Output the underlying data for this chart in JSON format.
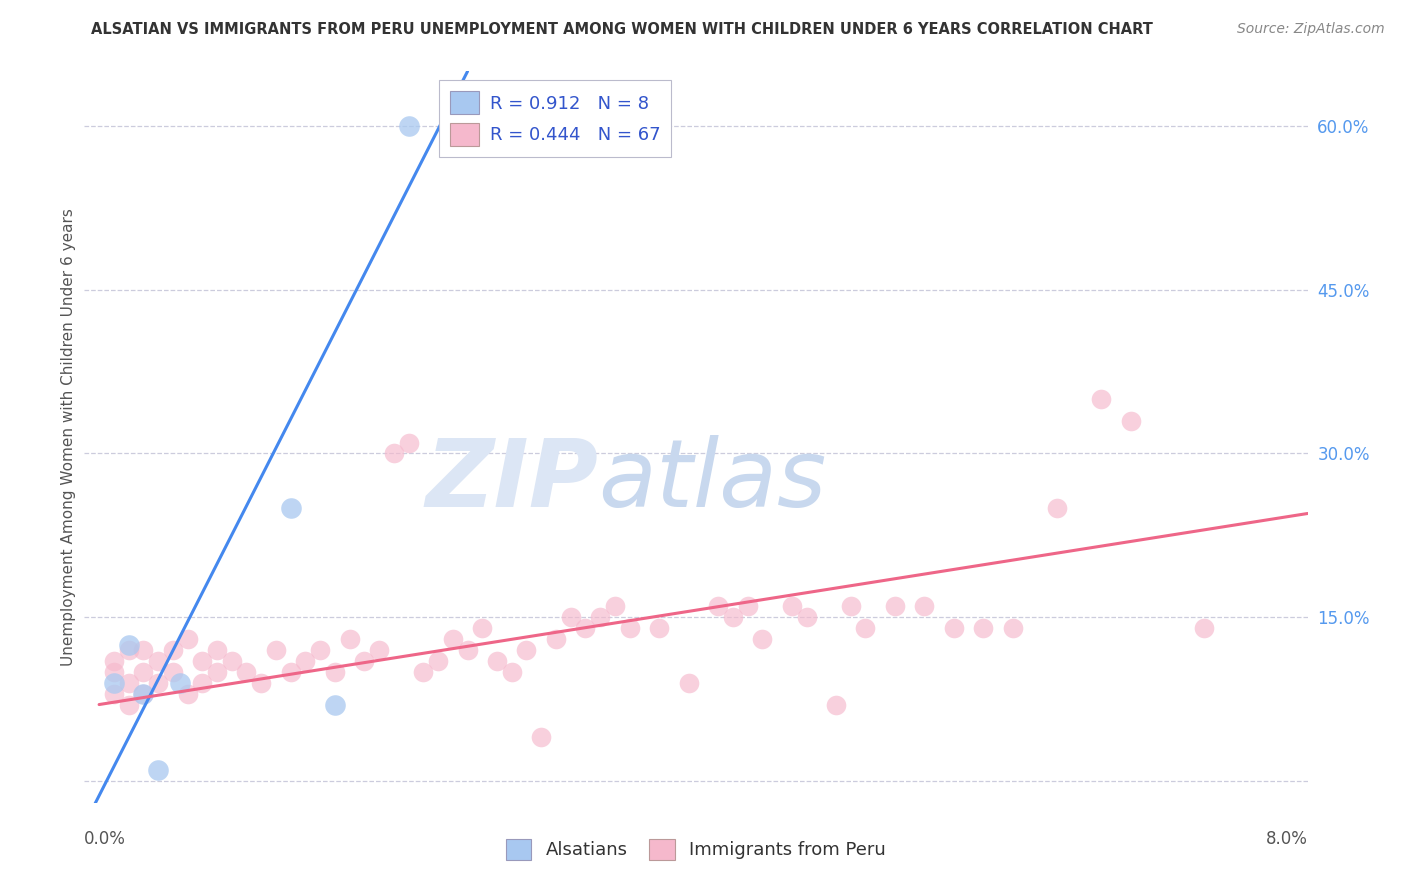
{
  "title": "ALSATIAN VS IMMIGRANTS FROM PERU UNEMPLOYMENT AMONG WOMEN WITH CHILDREN UNDER 6 YEARS CORRELATION CHART",
  "source": "Source: ZipAtlas.com",
  "ylabel": "Unemployment Among Women with Children Under 6 years",
  "legend_blue_label": "Alsatians",
  "legend_pink_label": "Immigrants from Peru",
  "r_blue": 0.912,
  "n_blue": 8,
  "r_pink": 0.444,
  "n_pink": 67,
  "blue_color": "#a8c8f0",
  "pink_color": "#f5b8cc",
  "blue_line_color": "#4488ee",
  "pink_line_color": "#ee6688",
  "grid_color": "#ccccdd",
  "title_color": "#333333",
  "source_color": "#888888",
  "axis_label_color": "#555555",
  "right_tick_color": "#5599ee",
  "legend_text_color": "#3355cc",
  "watermark_zip_color": "#dde4f5",
  "watermark_atlas_color": "#c8d8f0",
  "xlim": [
    -0.001,
    0.082
  ],
  "ylim": [
    -0.02,
    0.65
  ],
  "yticks": [
    0.0,
    0.15,
    0.3,
    0.45,
    0.6
  ],
  "ytick_labels_right": [
    "",
    "15.0%",
    "30.0%",
    "45.0%",
    "60.0%"
  ],
  "alsatians_x": [
    0.001,
    0.002,
    0.003,
    0.004,
    0.0055,
    0.013,
    0.021,
    0.016
  ],
  "alsatians_y": [
    0.09,
    0.125,
    0.08,
    0.01,
    0.09,
    0.25,
    0.6,
    0.07
  ],
  "blue_line_x": [
    -0.001,
    0.025
  ],
  "blue_line_y": [
    -0.04,
    0.65
  ],
  "pink_line_x": [
    0.0,
    0.082
  ],
  "pink_line_y": [
    0.07,
    0.245
  ],
  "peru_x": [
    0.001,
    0.001,
    0.001,
    0.002,
    0.002,
    0.002,
    0.003,
    0.003,
    0.003,
    0.004,
    0.004,
    0.005,
    0.005,
    0.006,
    0.006,
    0.007,
    0.007,
    0.008,
    0.008,
    0.009,
    0.01,
    0.011,
    0.012,
    0.013,
    0.014,
    0.015,
    0.016,
    0.017,
    0.018,
    0.019,
    0.02,
    0.021,
    0.022,
    0.023,
    0.024,
    0.025,
    0.026,
    0.027,
    0.028,
    0.029,
    0.03,
    0.031,
    0.032,
    0.033,
    0.034,
    0.035,
    0.036,
    0.038,
    0.04,
    0.042,
    0.043,
    0.044,
    0.045,
    0.047,
    0.048,
    0.05,
    0.051,
    0.052,
    0.054,
    0.056,
    0.058,
    0.06,
    0.062,
    0.065,
    0.068,
    0.07,
    0.075
  ],
  "peru_y": [
    0.08,
    0.1,
    0.11,
    0.07,
    0.09,
    0.12,
    0.08,
    0.1,
    0.12,
    0.09,
    0.11,
    0.1,
    0.12,
    0.08,
    0.13,
    0.09,
    0.11,
    0.1,
    0.12,
    0.11,
    0.1,
    0.09,
    0.12,
    0.1,
    0.11,
    0.12,
    0.1,
    0.13,
    0.11,
    0.12,
    0.3,
    0.31,
    0.1,
    0.11,
    0.13,
    0.12,
    0.14,
    0.11,
    0.1,
    0.12,
    0.04,
    0.13,
    0.15,
    0.14,
    0.15,
    0.16,
    0.14,
    0.14,
    0.09,
    0.16,
    0.15,
    0.16,
    0.13,
    0.16,
    0.15,
    0.07,
    0.16,
    0.14,
    0.16,
    0.16,
    0.14,
    0.14,
    0.14,
    0.25,
    0.35,
    0.33,
    0.14
  ]
}
